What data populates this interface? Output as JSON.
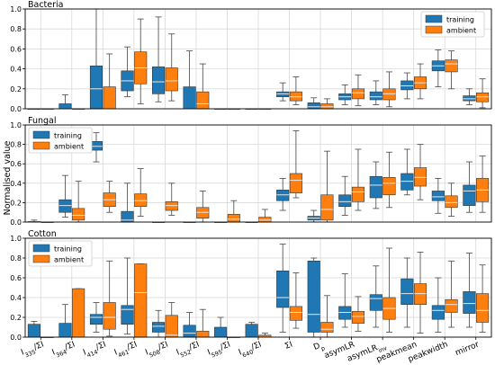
{
  "chart_data": {
    "type": "box",
    "ylabel": "Normalised value",
    "ylim": [
      0,
      1.0
    ],
    "yticks": [
      0.0,
      0.2,
      0.4,
      0.6,
      0.8,
      1.0
    ],
    "ytick_labels": [
      "0.0",
      "0.2",
      "0.4",
      "0.6",
      "0.8",
      "1.0"
    ],
    "grid": true,
    "legend_placement": [
      "top-right",
      "top-left",
      "top-left"
    ],
    "colors": {
      "training": "#1f77b4",
      "ambient": "#ff7f0e"
    },
    "series": [
      {
        "name": "training"
      },
      {
        "name": "ambient"
      }
    ],
    "categories": [
      {
        "base": "I",
        "sub": "335",
        "suffix": "/ΣI"
      },
      {
        "base": "I",
        "sub": "364",
        "suffix": "/ΣI"
      },
      {
        "base": "I",
        "sub": "414",
        "suffix": "/ΣI"
      },
      {
        "base": "I",
        "sub": "461",
        "suffix": "/ΣI"
      },
      {
        "base": "I",
        "sub": "508",
        "suffix": "/ΣI"
      },
      {
        "base": "I",
        "sub": "552",
        "suffix": "/ΣI"
      },
      {
        "base": "I",
        "sub": "595",
        "suffix": "/ΣI"
      },
      {
        "base": "I",
        "sub": "640",
        "suffix": "/ΣI"
      },
      {
        "base": "ΣI",
        "sub": "",
        "suffix": ""
      },
      {
        "base": "D",
        "sub": "p",
        "suffix": ""
      },
      {
        "base": "asymLR",
        "sub": "",
        "suffix": ""
      },
      {
        "base": "asymLR",
        "sub": "inv",
        "suffix": ""
      },
      {
        "base": "peakmean",
        "sub": "",
        "suffix": ""
      },
      {
        "base": "peakwidth",
        "sub": "",
        "suffix": ""
      },
      {
        "base": "mirror",
        "sub": "",
        "suffix": ""
      }
    ],
    "panels": [
      {
        "title": "Bacteria",
        "training": [
          [
            0,
            0,
            0,
            0,
            0
          ],
          [
            0,
            0,
            0,
            0.05,
            0.14
          ],
          [
            0,
            0,
            0.2,
            0.43,
            1.0
          ],
          [
            0.12,
            0.18,
            0.28,
            0.38,
            0.62
          ],
          [
            0.07,
            0.15,
            0.27,
            0.42,
            0.92
          ],
          [
            0,
            0,
            0,
            0.22,
            0.58
          ],
          [
            0,
            0,
            0,
            0,
            0
          ],
          [
            0,
            0,
            0,
            0,
            0
          ],
          [
            0.08,
            0.12,
            0.15,
            0.17,
            0.26
          ],
          [
            0,
            0,
            0.02,
            0.06,
            0.11
          ],
          [
            0.04,
            0.09,
            0.12,
            0.15,
            0.24
          ],
          [
            0.04,
            0.09,
            0.12,
            0.17,
            0.28
          ],
          [
            0.1,
            0.19,
            0.23,
            0.28,
            0.36
          ],
          [
            0.22,
            0.38,
            0.43,
            0.48,
            0.59
          ],
          [
            0.04,
            0.08,
            0.1,
            0.13,
            0.2
          ]
        ],
        "ambient": [
          [
            0,
            0,
            0,
            0,
            0
          ],
          [
            0,
            0,
            0,
            0,
            0
          ],
          [
            0,
            0,
            0,
            0.22,
            0.55
          ],
          [
            0.05,
            0.25,
            0.41,
            0.57,
            0.9
          ],
          [
            0.08,
            0.18,
            0.28,
            0.41,
            0.75
          ],
          [
            0,
            0,
            0.05,
            0.17,
            0.45
          ],
          [
            0,
            0,
            0,
            0,
            0
          ],
          [
            0,
            0,
            0,
            0,
            0
          ],
          [
            0.04,
            0.08,
            0.12,
            0.17,
            0.32
          ],
          [
            0,
            0,
            0.02,
            0.05,
            0.1
          ],
          [
            0.03,
            0.1,
            0.16,
            0.2,
            0.34
          ],
          [
            0.02,
            0.09,
            0.15,
            0.2,
            0.37
          ],
          [
            0.1,
            0.2,
            0.26,
            0.32,
            0.45
          ],
          [
            0.2,
            0.37,
            0.45,
            0.49,
            0.58
          ],
          [
            0.01,
            0.07,
            0.12,
            0.16,
            0.3
          ]
        ]
      },
      {
        "title": "Fungal",
        "training": [
          [
            0,
            0,
            0,
            0.005,
            0.02
          ],
          [
            0.05,
            0.1,
            0.17,
            0.23,
            0.48
          ],
          [
            0.62,
            0.74,
            0.78,
            0.83,
            0.92
          ],
          [
            0,
            0,
            0.02,
            0.11,
            0.4
          ],
          [
            0,
            0,
            0,
            0,
            0
          ],
          [
            0,
            0,
            0,
            0,
            0
          ],
          [
            0,
            0,
            0,
            0,
            0
          ],
          [
            0,
            0,
            0,
            0,
            0
          ],
          [
            0.12,
            0.22,
            0.28,
            0.33,
            0.45
          ],
          [
            0,
            0.02,
            0.04,
            0.06,
            0.12
          ],
          [
            0.07,
            0.16,
            0.21,
            0.28,
            0.47
          ],
          [
            0.14,
            0.25,
            0.38,
            0.47,
            0.62
          ],
          [
            0.28,
            0.33,
            0.42,
            0.5,
            0.75
          ],
          [
            0.09,
            0.22,
            0.26,
            0.32,
            0.45
          ],
          [
            0.1,
            0.17,
            0.32,
            0.38,
            0.62
          ]
        ],
        "ambient": [
          [
            0,
            0,
            0,
            0,
            0
          ],
          [
            0,
            0.02,
            0.07,
            0.14,
            0.42
          ],
          [
            0.1,
            0.16,
            0.23,
            0.3,
            0.42
          ],
          [
            0.06,
            0.16,
            0.22,
            0.29,
            0.55
          ],
          [
            0.07,
            0.12,
            0.17,
            0.21,
            0.4
          ],
          [
            0,
            0.04,
            0.1,
            0.15,
            0.32
          ],
          [
            0,
            0,
            0.03,
            0.08,
            0.22
          ],
          [
            0,
            0,
            0.02,
            0.05,
            0.13
          ],
          [
            0.25,
            0.3,
            0.43,
            0.5,
            0.94
          ],
          [
            0,
            0.02,
            0.13,
            0.28,
            0.73
          ],
          [
            0.12,
            0.21,
            0.31,
            0.36,
            0.75
          ],
          [
            0.15,
            0.28,
            0.4,
            0.46,
            0.72
          ],
          [
            0.23,
            0.37,
            0.46,
            0.56,
            0.8
          ],
          [
            0.06,
            0.15,
            0.2,
            0.27,
            0.4
          ],
          [
            0.1,
            0.21,
            0.33,
            0.45,
            0.68
          ]
        ]
      },
      {
        "title": "Cotton",
        "training": [
          [
            0,
            0,
            0,
            0.13,
            0.16
          ],
          [
            0,
            0,
            0,
            0.14,
            0.33
          ],
          [
            0.05,
            0.13,
            0.2,
            0.23,
            0.35
          ],
          [
            0.03,
            0.13,
            0.28,
            0.32,
            0.8
          ],
          [
            0,
            0.05,
            0.11,
            0.15,
            0.27
          ],
          [
            0,
            0,
            0.04,
            0.12,
            0.25
          ],
          [
            0,
            0,
            0,
            0.1,
            0.2
          ],
          [
            0,
            0,
            0,
            0.13,
            0.15
          ],
          [
            0.05,
            0.3,
            0.4,
            0.67,
            0.94
          ],
          [
            0,
            0.05,
            0.23,
            0.77,
            0.8
          ],
          [
            0.1,
            0.18,
            0.25,
            0.31,
            0.64
          ],
          [
            0.1,
            0.27,
            0.39,
            0.43,
            0.72
          ],
          [
            0.1,
            0.33,
            0.44,
            0.59,
            0.8
          ],
          [
            0.05,
            0.18,
            0.27,
            0.32,
            0.6
          ],
          [
            0.1,
            0.24,
            0.34,
            0.46,
            0.85
          ]
        ],
        "ambient": [
          [
            0,
            0,
            0,
            0,
            0
          ],
          [
            0,
            0,
            0,
            0.49,
            0.49
          ],
          [
            0.01,
            0.08,
            0.2,
            0.35,
            0.77
          ],
          [
            0,
            0,
            0.45,
            0.74,
            0.74
          ],
          [
            0,
            0,
            0.02,
            0.22,
            0.35
          ],
          [
            0,
            0,
            0,
            0.06,
            0.28
          ],
          [
            0,
            0,
            0,
            0,
            0
          ],
          [
            0,
            0,
            0,
            0.02,
            0.04
          ],
          [
            0.09,
            0.17,
            0.25,
            0.31,
            0.65
          ],
          [
            0,
            0.05,
            0.08,
            0.15,
            0.42
          ],
          [
            0.06,
            0.14,
            0.21,
            0.26,
            0.41
          ],
          [
            0.05,
            0.18,
            0.29,
            0.4,
            0.9
          ],
          [
            0.04,
            0.33,
            0.44,
            0.54,
            0.86
          ],
          [
            0.1,
            0.25,
            0.33,
            0.38,
            0.77
          ],
          [
            0.05,
            0.15,
            0.27,
            0.44,
            0.73
          ]
        ]
      }
    ]
  }
}
